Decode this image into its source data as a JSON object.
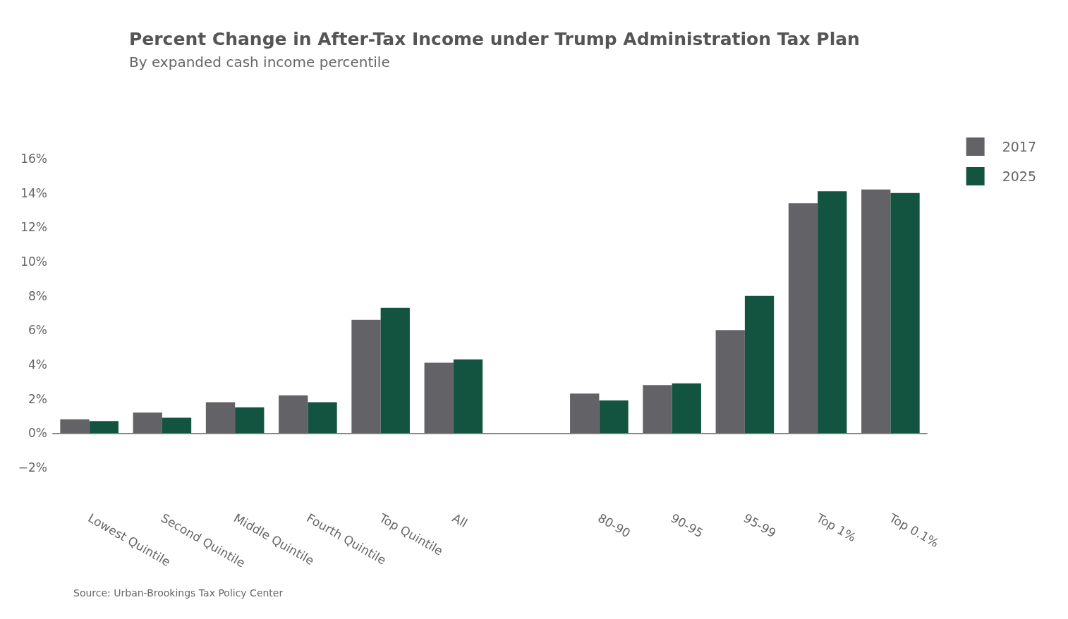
{
  "chart_data": {
    "type": "bar",
    "title": "Percent Change in After-Tax Income under Trump Administration Tax Plan",
    "subtitle": "By expanded cash income percentile",
    "categories": [
      "Lowest Quintile",
      "Second Quintile",
      "Middle Quintile",
      "Fourth Quintile",
      "Top Quintile",
      "All",
      null,
      "80-90",
      "90-95",
      "95-99",
      "Top 1%",
      "Top 0.1%"
    ],
    "series": [
      {
        "name": "2017",
        "color": "#636266",
        "values": [
          0.8,
          1.2,
          1.8,
          2.2,
          6.6,
          4.1,
          null,
          2.3,
          2.8,
          6.0,
          13.4,
          14.2
        ]
      },
      {
        "name": "2025",
        "color": "#135440",
        "values": [
          0.7,
          0.9,
          1.5,
          1.8,
          7.3,
          4.3,
          null,
          1.9,
          2.9,
          8.0,
          14.1,
          14.0
        ]
      }
    ],
    "ylim": [
      -2,
      16
    ],
    "yticks": [
      {
        "value": -2,
        "label": "−2%"
      },
      {
        "value": 0,
        "label": "0%"
      },
      {
        "value": 2,
        "label": "2%"
      },
      {
        "value": 4,
        "label": "4%"
      },
      {
        "value": 6,
        "label": "6%"
      },
      {
        "value": 8,
        "label": "8%"
      },
      {
        "value": 10,
        "label": "10%"
      },
      {
        "value": 12,
        "label": "12%"
      },
      {
        "value": 14,
        "label": "14%"
      },
      {
        "value": 16,
        "label": "16%"
      }
    ],
    "legend": "top right",
    "annotations": [
      "Source: Urban-Brookings Tax Policy Center"
    ]
  }
}
